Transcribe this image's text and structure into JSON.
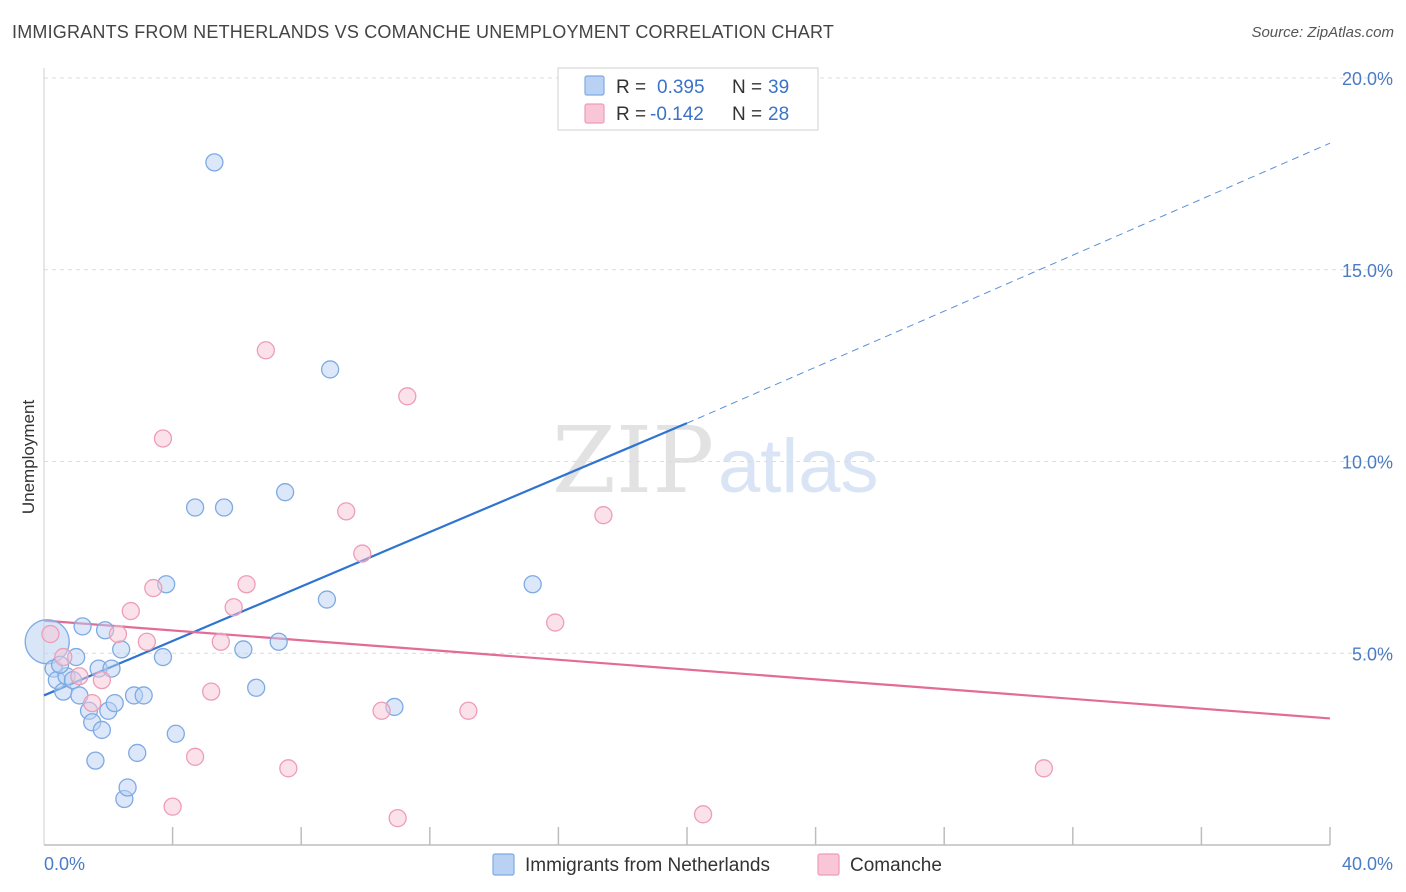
{
  "header": {
    "title": "IMMIGRANTS FROM NETHERLANDS VS COMANCHE UNEMPLOYMENT CORRELATION CHART",
    "source": "Source: ZipAtlas.com"
  },
  "watermark": {
    "zip": "ZIP",
    "atlas": "atlas"
  },
  "chart_data": {
    "type": "scatter",
    "title": "IMMIGRANTS FROM NETHERLANDS VS COMANCHE UNEMPLOYMENT CORRELATION CHART",
    "xlabel": "",
    "ylabel": "Unemployment",
    "xlim": [
      0,
      40
    ],
    "ylim": [
      0,
      20
    ],
    "x_tick_labels": [
      "0.0%",
      "40.0%"
    ],
    "y_ticks": [
      5,
      10,
      15,
      20
    ],
    "y_tick_labels": [
      "5.0%",
      "10.0%",
      "15.0%",
      "20.0%"
    ],
    "grid": true,
    "legend_position": "top-center",
    "colors": {
      "blue_fill": "#b9d1f3",
      "blue_stroke": "#7eaae3",
      "blue_line": "#2f74d0",
      "pink_fill": "#f8c6d6",
      "pink_stroke": "#ee9db6",
      "pink_line": "#e36b97",
      "value_text": "#3b73c8"
    },
    "series": [
      {
        "name": "Immigrants from Netherlands",
        "r_label": "R = ",
        "r_value": "0.395",
        "n_label": "N = ",
        "n_value": "39",
        "trend": {
          "x_start": 0,
          "y_start": 3.9,
          "x_solid_end": 20,
          "y_solid_end": 11.0,
          "x_dash_end": 40,
          "y_dash_end": 18.3
        },
        "points": [
          [
            0.1,
            5.3
          ],
          [
            0.3,
            4.6
          ],
          [
            0.4,
            4.3
          ],
          [
            0.6,
            4.0
          ],
          [
            0.7,
            4.4
          ],
          [
            0.9,
            4.3
          ],
          [
            1.0,
            4.9
          ],
          [
            1.1,
            3.9
          ],
          [
            1.2,
            5.7
          ],
          [
            1.4,
            3.5
          ],
          [
            1.5,
            3.2
          ],
          [
            1.6,
            2.2
          ],
          [
            1.7,
            4.6
          ],
          [
            1.8,
            3.0
          ],
          [
            1.9,
            5.6
          ],
          [
            2.0,
            3.5
          ],
          [
            2.1,
            4.6
          ],
          [
            2.2,
            3.7
          ],
          [
            2.4,
            5.1
          ],
          [
            2.5,
            1.2
          ],
          [
            2.6,
            1.5
          ],
          [
            2.8,
            3.9
          ],
          [
            2.9,
            2.4
          ],
          [
            3.1,
            3.9
          ],
          [
            3.7,
            4.9
          ],
          [
            3.8,
            6.8
          ],
          [
            4.1,
            2.9
          ],
          [
            4.7,
            8.8
          ],
          [
            5.3,
            17.8
          ],
          [
            5.6,
            8.8
          ],
          [
            6.2,
            5.1
          ],
          [
            6.6,
            4.1
          ],
          [
            7.3,
            5.3
          ],
          [
            7.5,
            9.2
          ],
          [
            8.8,
            6.4
          ],
          [
            8.9,
            12.4
          ],
          [
            10.9,
            3.6
          ],
          [
            15.2,
            6.8
          ],
          [
            0.5,
            4.7
          ]
        ]
      },
      {
        "name": "Comanche",
        "r_label": "R = ",
        "r_value": "-0.142",
        "n_label": "N = ",
        "n_value": "28",
        "trend": {
          "x_start": 0,
          "y_start": 5.85,
          "x_end": 40,
          "y_end": 3.3
        },
        "points": [
          [
            0.2,
            5.5
          ],
          [
            0.6,
            4.9
          ],
          [
            1.1,
            4.4
          ],
          [
            1.5,
            3.7
          ],
          [
            1.8,
            4.3
          ],
          [
            2.3,
            5.5
          ],
          [
            2.7,
            6.1
          ],
          [
            3.2,
            5.3
          ],
          [
            3.4,
            6.7
          ],
          [
            3.7,
            10.6
          ],
          [
            4.0,
            1.0
          ],
          [
            4.7,
            2.3
          ],
          [
            5.2,
            4.0
          ],
          [
            5.5,
            5.3
          ],
          [
            5.9,
            6.2
          ],
          [
            6.3,
            6.8
          ],
          [
            6.9,
            12.9
          ],
          [
            7.6,
            2.0
          ],
          [
            9.4,
            8.7
          ],
          [
            9.9,
            7.6
          ],
          [
            10.5,
            3.5
          ],
          [
            11.0,
            0.7
          ],
          [
            11.3,
            11.7
          ],
          [
            13.2,
            3.5
          ],
          [
            15.9,
            5.8
          ],
          [
            17.4,
            8.6
          ],
          [
            20.5,
            0.8
          ],
          [
            31.1,
            2.0
          ]
        ]
      }
    ]
  }
}
